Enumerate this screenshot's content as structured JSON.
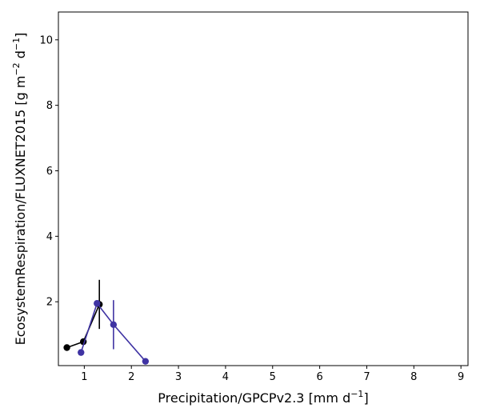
{
  "chart_data": {
    "type": "line",
    "xlabel": {
      "base": "Precipitation/GPCPv2.3 [mm d",
      "sup": "−1",
      "tail": "]"
    },
    "ylabel": {
      "base": "EcosystemRespiration/FLUXNET2015 [g m",
      "sup1": "−2",
      "mid": " d",
      "sup2": "−1",
      "tail": "]"
    },
    "xlim": [
      0.45,
      9.15
    ],
    "ylim": [
      0.05,
      10.85
    ],
    "xticks": [
      1,
      2,
      3,
      4,
      5,
      6,
      7,
      8,
      9
    ],
    "yticks": [
      2,
      4,
      6,
      8,
      10
    ],
    "grid": false,
    "legend": "none",
    "series": [
      {
        "color": "#000000",
        "points": [
          {
            "x": 0.63,
            "y": 0.6
          },
          {
            "x": 0.98,
            "y": 0.78
          },
          {
            "x": 1.32,
            "y": 1.92,
            "err": 0.75
          }
        ]
      },
      {
        "color": "#3f33a3",
        "points": [
          {
            "x": 0.93,
            "y": 0.45
          },
          {
            "x": 1.27,
            "y": 1.95
          },
          {
            "x": 1.62,
            "y": 1.3,
            "err": 0.75
          },
          {
            "x": 2.3,
            "y": 0.18
          }
        ]
      }
    ]
  }
}
